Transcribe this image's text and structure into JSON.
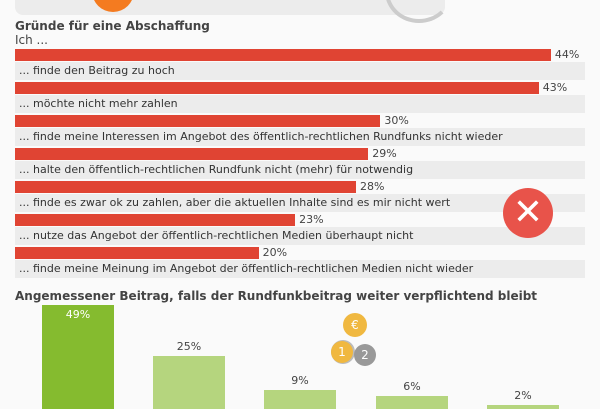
{
  "icons": {
    "top": "orange-circle-icon",
    "reject": "x-icon",
    "coins": "coins-icon"
  },
  "colors": {
    "red": "#e04433",
    "green_dark": "#85bb2f",
    "green_light": "#b5d57e"
  },
  "chart_data": [
    {
      "type": "bar",
      "orientation": "horizontal",
      "title": "Gründe für eine Abschaffung",
      "subtitle": "Ich ...",
      "categories": [
        "... finde den Beitrag zu hoch",
        "... möchte nicht mehr zahlen",
        "... finde meine Interessen im Angebot des öffentlich-rechtlichen Rundfunks nicht wieder",
        "... halte den öffentlich-rechtlichen Rundfunk nicht (mehr) für notwendig",
        "... finde es zwar ok zu zahlen, aber die aktuellen Inhalte sind es mir nicht wert",
        "... nutze das Angebot der öffentlich-rechtlichen Medien überhaupt nicht",
        "... finde meine Meinung im Angebot der öffentlich-rechtlichen Medien nicht wieder"
      ],
      "values": [
        44,
        43,
        30,
        29,
        28,
        23,
        20
      ],
      "labels": [
        "44%",
        "43%",
        "30%",
        "29%",
        "28%",
        "23%",
        "20%"
      ],
      "unit": "%"
    },
    {
      "type": "bar",
      "title": "Angemessener Beitrag, falls der Rundfunkbeitrag weiter verpflichtend bleibt",
      "values": [
        49,
        25,
        9,
        6,
        2
      ],
      "labels": [
        "49%",
        "25%",
        "9%",
        "6%",
        "2%"
      ],
      "coin_labels": [
        "€",
        "1",
        "2"
      ],
      "unit": "%"
    }
  ]
}
